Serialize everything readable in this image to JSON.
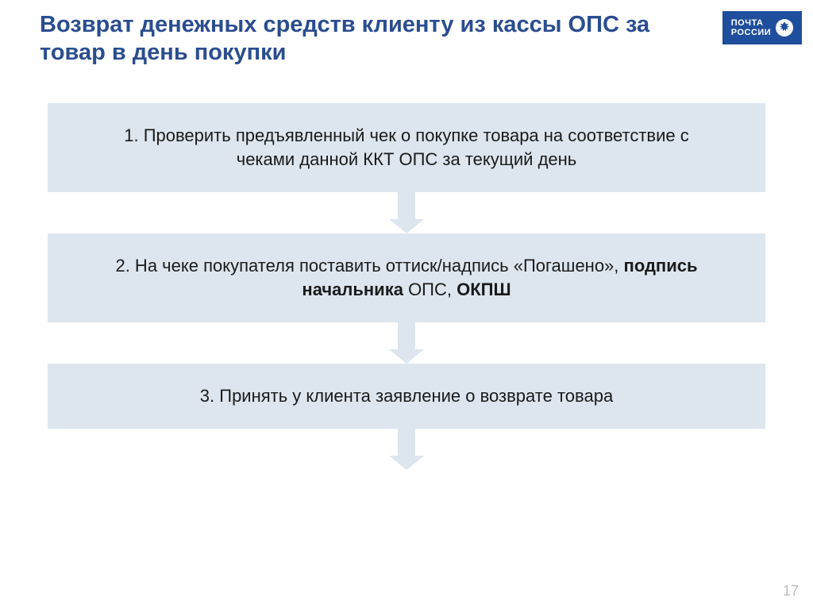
{
  "logo": {
    "line1": "ПОЧТА",
    "line2": "РОССИИ",
    "bg": "#1f4e9c"
  },
  "title": "Возврат денежных средств клиенту из кассы ОПС за товар в день покупки",
  "title_color": "#2a4d8f",
  "flow": {
    "step_bg": "#dde6ef",
    "arrow_color": "#dde6ef",
    "text_color": "#1a1a1a",
    "font_size": 22,
    "steps": [
      {
        "prefix": "1. Проверить предъявленный чек о покупке товара на соответствие с чеками данной ККТ ОПС за текущий день",
        "bold_parts": []
      },
      {
        "prefix": "2. На чеке покупателя  поставить оттиск/надпись «Погашено», ",
        "bold1": "подпись начальника",
        "mid": " ОПС, ",
        "bold2": "ОКПШ"
      },
      {
        "prefix": "3. Принять у клиента заявление о возврате товара"
      }
    ]
  },
  "page_number": "17"
}
